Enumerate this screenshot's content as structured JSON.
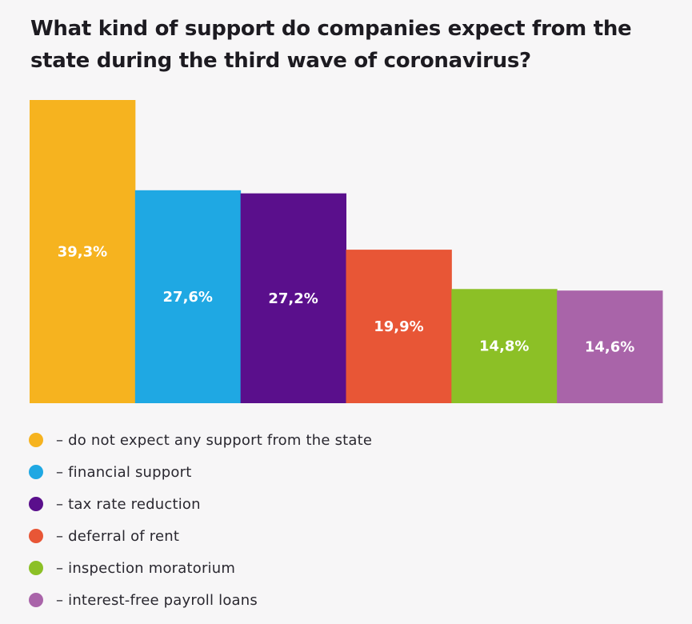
{
  "title": "What kind of support do companies expect from the state during the third wave of coronavirus?",
  "chart_data": {
    "type": "bar",
    "title": "What kind of support do companies expect from the state during the third wave of coronavirus?",
    "categories": [
      "do not expect any support from the state",
      "financial support",
      "tax rate reduction",
      "deferral of rent",
      "inspection moratorium",
      "interest-free payroll loans"
    ],
    "values": [
      39.3,
      27.6,
      27.2,
      19.9,
      14.8,
      14.6
    ],
    "value_labels": [
      "39,3%",
      "27,6%",
      "27,2%",
      "19,9%",
      "14,8%",
      "14,6%"
    ],
    "colors": [
      "#f6b31f",
      "#1fa8e3",
      "#5a0f8c",
      "#e85636",
      "#8cc026",
      "#a964a9"
    ],
    "unit": "%",
    "ylim": [
      0,
      39.3
    ],
    "grid": false,
    "legend_position": "bottom"
  },
  "legend": [
    {
      "marker": "#f6b31f",
      "label": "– do not expect any support from the state"
    },
    {
      "marker": "#1fa8e3",
      "label": "– financial support"
    },
    {
      "marker": "#5a0f8c",
      "label": "– tax rate reduction"
    },
    {
      "marker": "#e85636",
      "label": "– deferral of rent"
    },
    {
      "marker": "#8cc026",
      "label": "– inspection moratorium"
    },
    {
      "marker": "#a964a9",
      "label": "– interest-free payroll loans"
    }
  ]
}
